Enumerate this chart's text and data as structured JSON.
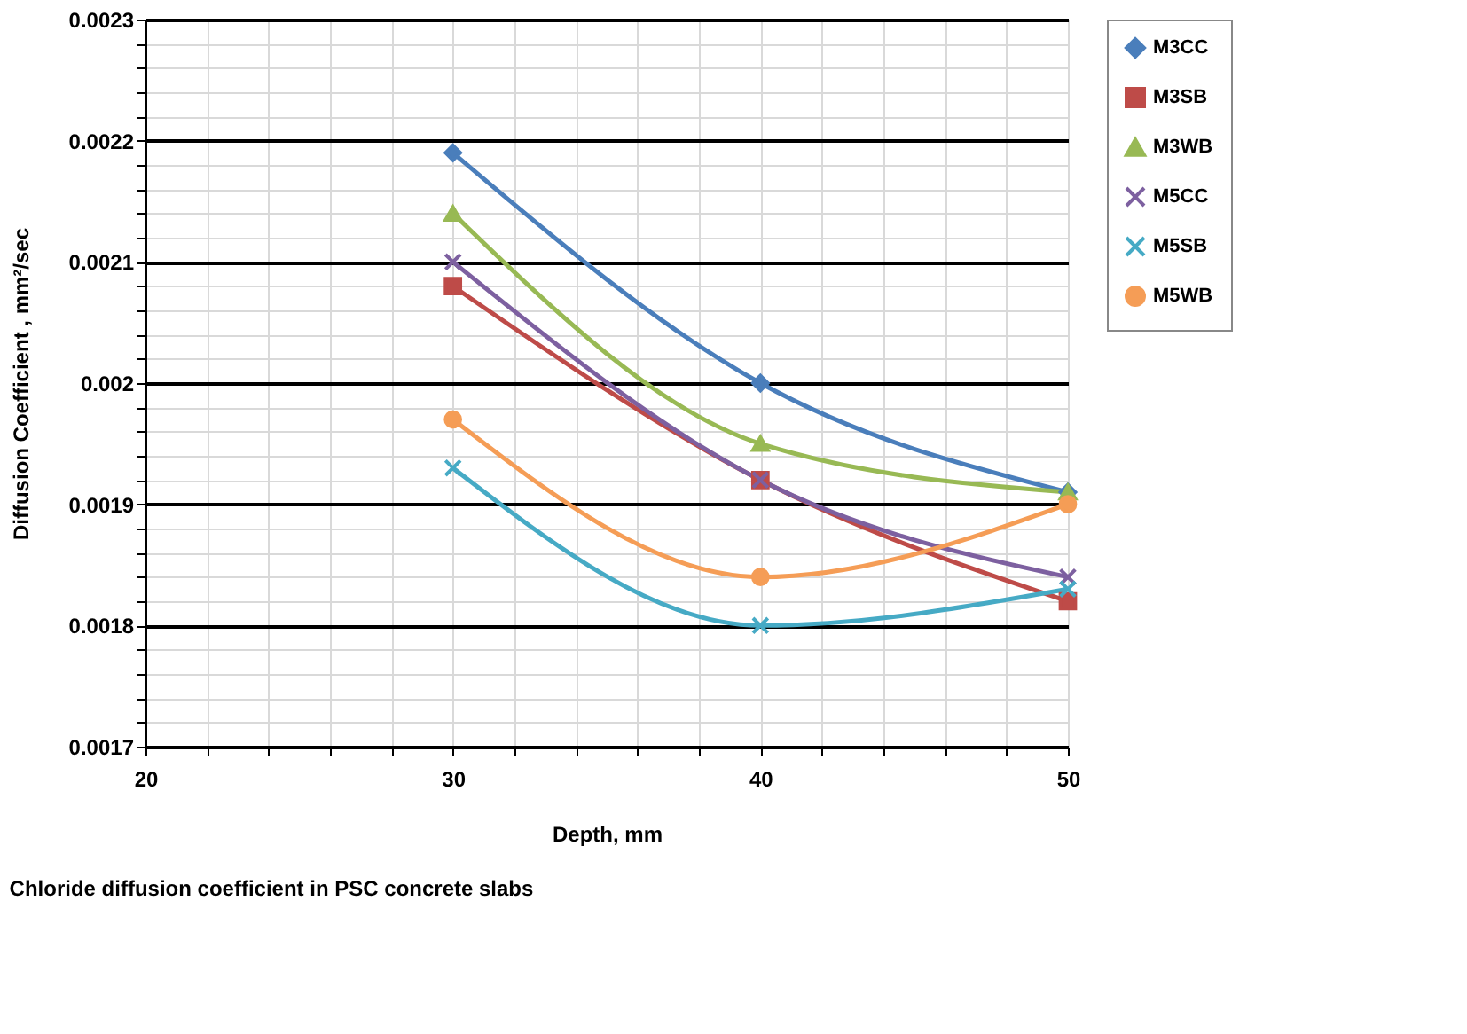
{
  "chart_data": {
    "type": "line",
    "xlabel": "Depth, mm",
    "ylabel": "Diffusion Coefficient , mm²/sec",
    "annotations": [
      "Chloride diffusion coefficient in PSC concrete slabs"
    ],
    "x": [
      30,
      40,
      50
    ],
    "xlim": [
      20,
      50
    ],
    "ylim": [
      0.0017,
      0.0023
    ],
    "xticks": [
      20,
      {
        "value": 22,
        "label": null
      },
      {
        "value": 24,
        "label": null
      },
      {
        "value": 26,
        "label": null
      },
      {
        "value": 28,
        "label": null
      },
      30,
      {
        "value": 32,
        "label": null
      },
      {
        "value": 34,
        "label": null
      },
      {
        "value": 36,
        "label": null
      },
      {
        "value": 38,
        "label": null
      },
      40,
      {
        "value": 42,
        "label": null
      },
      {
        "value": 44,
        "label": null
      },
      {
        "value": 46,
        "label": null
      },
      {
        "value": 48,
        "label": null
      },
      50
    ],
    "yticks": [
      0.0017,
      {
        "value": 0.00172,
        "label": null
      },
      {
        "value": 0.00174,
        "label": null
      },
      {
        "value": 0.00176,
        "label": null
      },
      {
        "value": 0.00178,
        "label": null
      },
      0.0018,
      {
        "value": 0.00182,
        "label": null
      },
      {
        "value": 0.00184,
        "label": null
      },
      {
        "value": 0.00186,
        "label": null
      },
      {
        "value": 0.00188,
        "label": null
      },
      0.0019,
      {
        "value": 0.00192,
        "label": null
      },
      {
        "value": 0.00194,
        "label": null
      },
      {
        "value": 0.00196,
        "label": null
      },
      {
        "value": 0.00198,
        "label": null
      },
      0.002,
      {
        "value": 0.00202,
        "label": null
      },
      {
        "value": 0.00204,
        "label": null
      },
      {
        "value": 0.00206,
        "label": null
      },
      {
        "value": 0.00208,
        "label": null
      },
      0.0021,
      {
        "value": 0.00212,
        "label": null
      },
      {
        "value": 0.00214,
        "label": null
      },
      {
        "value": 0.00216,
        "label": null
      },
      {
        "value": 0.00218,
        "label": null
      },
      0.0022,
      {
        "value": 0.00222,
        "label": null
      },
      {
        "value": 0.00224,
        "label": null
      },
      {
        "value": 0.00226,
        "label": null
      },
      {
        "value": 0.00228,
        "label": null
      },
      0.0023
    ],
    "grid": true,
    "legend": "right",
    "line_style": "solid",
    "series": [
      {
        "name": "M3CC",
        "color": "#4a7ebb",
        "marker": "diamond",
        "values": [
          0.00219,
          0.002,
          0.00191
        ]
      },
      {
        "name": "M3SB",
        "color": "#be4b48",
        "marker": "square",
        "values": [
          0.00208,
          0.00192,
          0.00182
        ]
      },
      {
        "name": "M3WB",
        "color": "#98b954",
        "marker": "triangle",
        "values": [
          0.00214,
          0.00195,
          0.00191
        ]
      },
      {
        "name": "M5CC",
        "color": "#7d60a0",
        "marker": "cross",
        "values": [
          0.0021,
          0.00192,
          0.00184
        ]
      },
      {
        "name": "M5SB",
        "color": "#46aac5",
        "marker": "cross",
        "values": [
          0.00193,
          0.0018,
          0.00183
        ]
      },
      {
        "name": "M5WB",
        "color": "#f59d56",
        "marker": "circle",
        "values": [
          0.00197,
          0.00184,
          0.0019
        ]
      }
    ]
  }
}
